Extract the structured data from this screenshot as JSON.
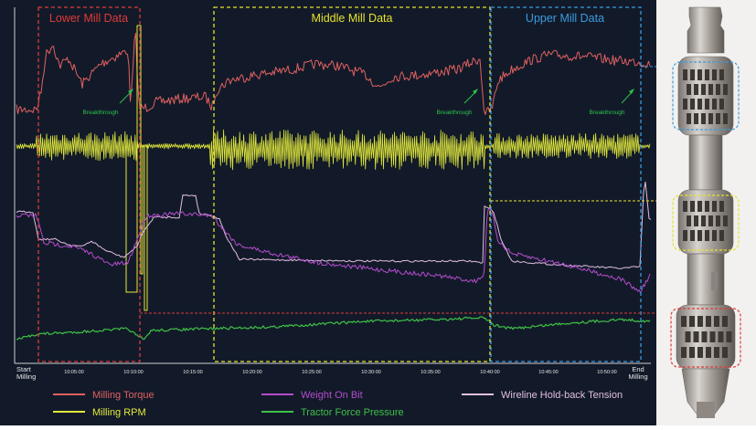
{
  "chart_data": {
    "type": "line",
    "sections": [
      {
        "label": "Lower Mill Data",
        "color": "#e03a3a"
      },
      {
        "label": "Middle Mill Data",
        "color": "#e6e22a"
      },
      {
        "label": "Upper Mill Data",
        "color": "#3a9be0"
      }
    ],
    "annotations": [
      "Breakthrough",
      "Breakthrough",
      "Breakthrough"
    ],
    "x_ticks": [
      "Start Milling",
      "10:05:00",
      "10:10:00",
      "10:15:00",
      "10:20:00",
      "10:25:00",
      "10:30:00",
      "10:35:00",
      "10:40:00",
      "10:45:00",
      "10:50:00",
      "End Milling"
    ],
    "series": [
      {
        "name": "Milling Torque",
        "color": "#e06060"
      },
      {
        "name": "Milling RPM",
        "color": "#e2ea3c"
      },
      {
        "name": "Weight On Bit",
        "color": "#b44ccc"
      },
      {
        "name": "Tractor Force Pressure",
        "color": "#3fc046"
      },
      {
        "name": "Wireline Hold-back Tension",
        "color": "#e2bfe2"
      }
    ],
    "legend_position": "bottom",
    "grid": false
  }
}
